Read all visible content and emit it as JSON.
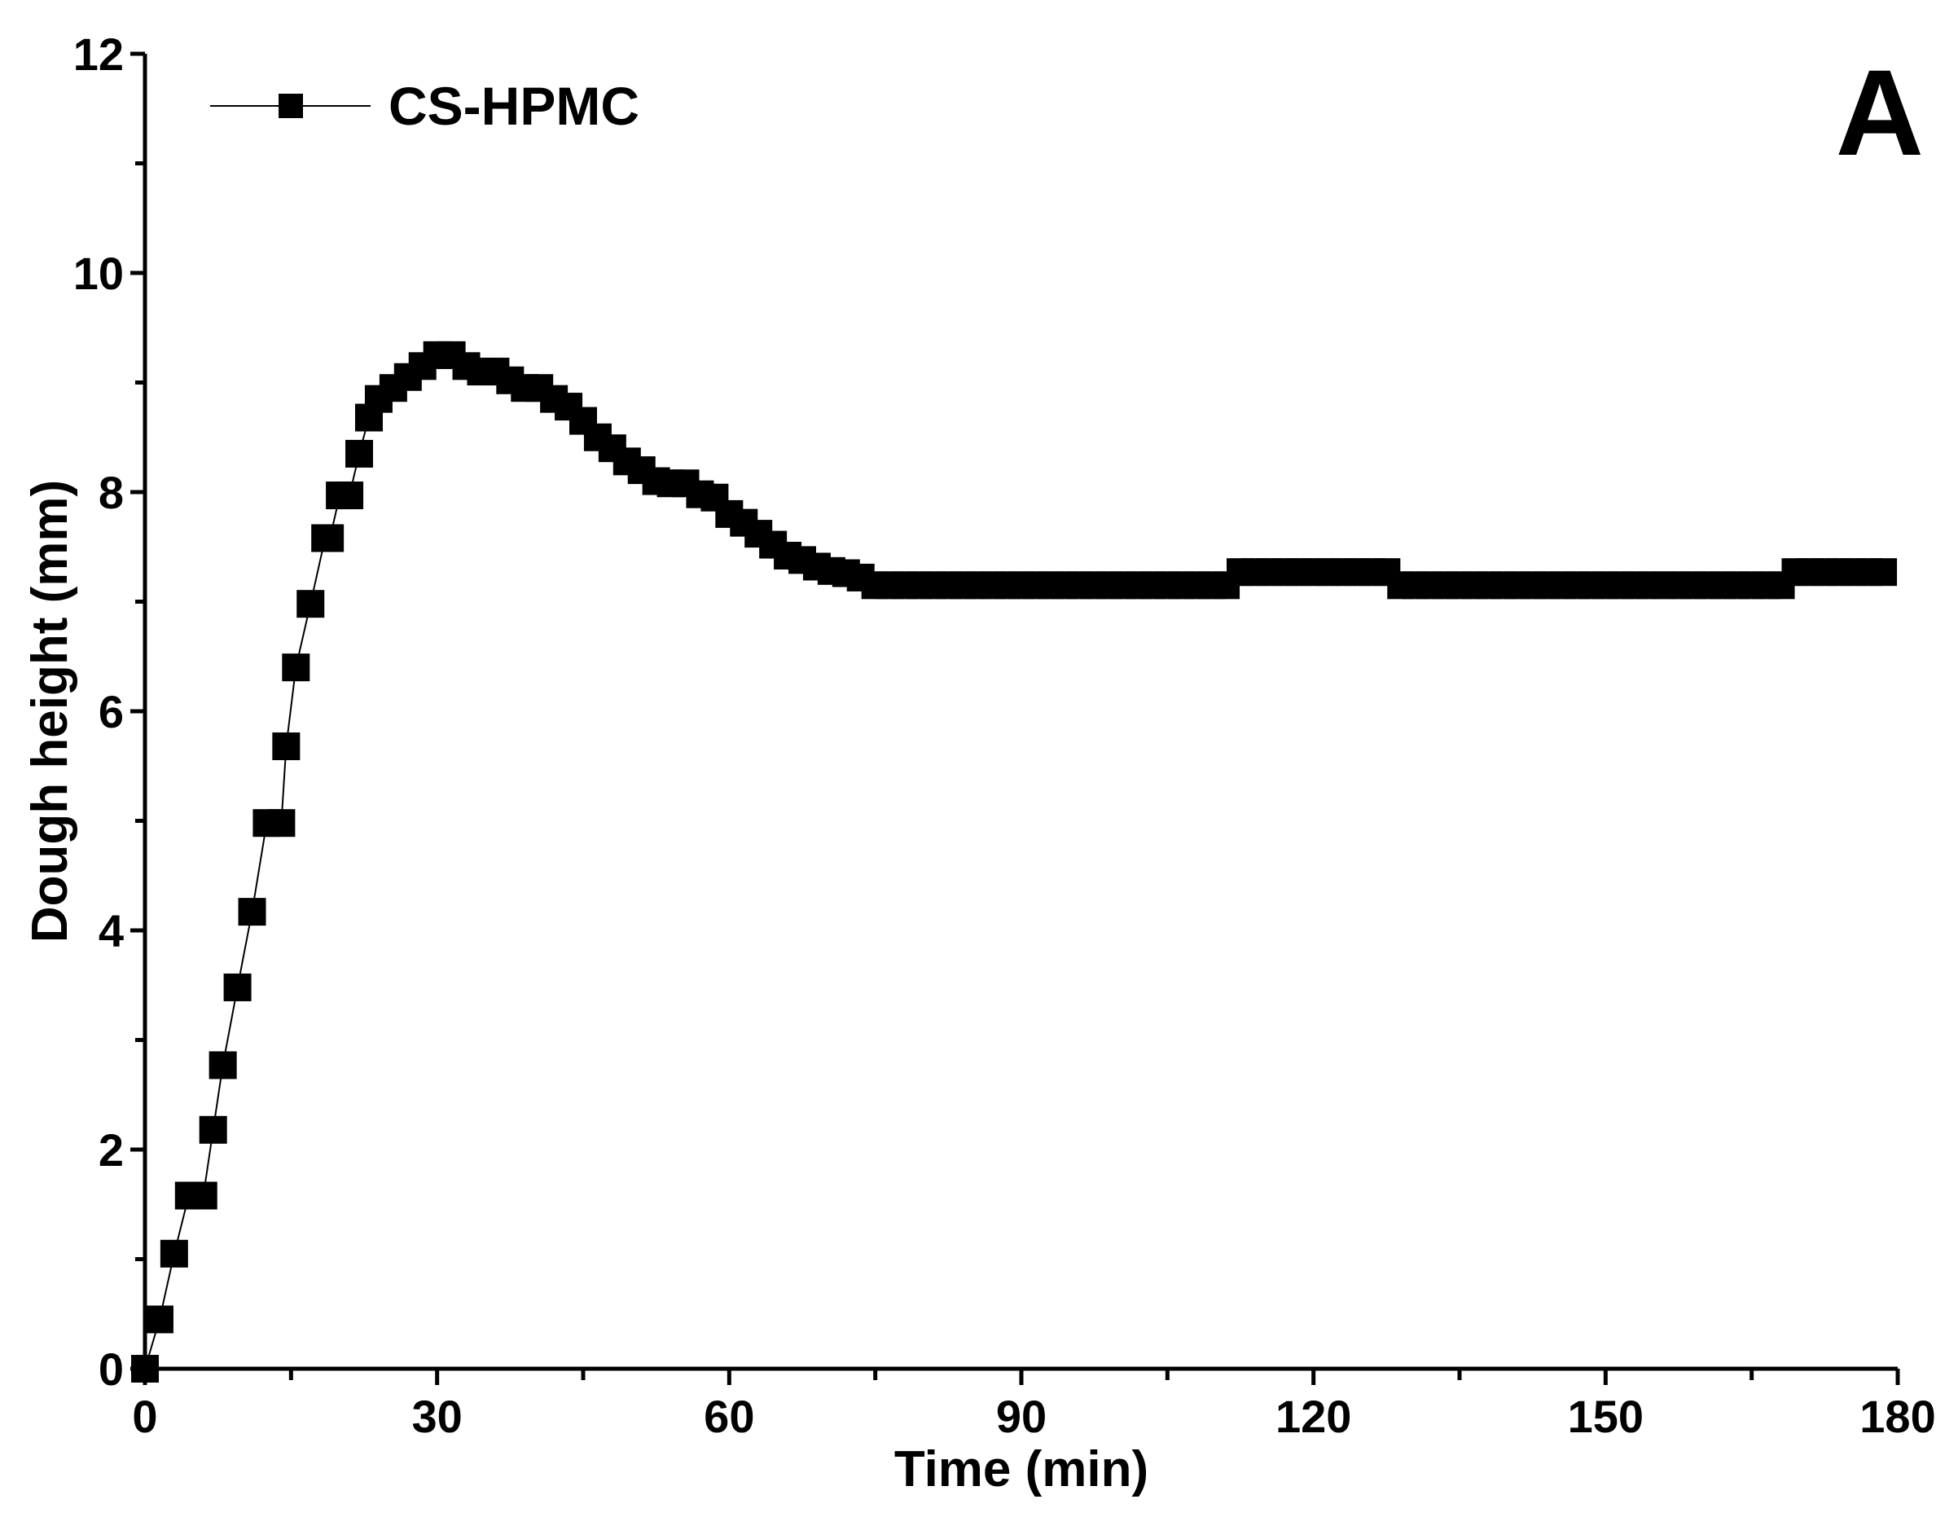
{
  "chart_data": {
    "type": "scatter",
    "title": "",
    "xlabel": "Time (min)",
    "ylabel": "Dough height (mm)",
    "xlim": [
      0,
      180
    ],
    "ylim": [
      0,
      12
    ],
    "xticks": [
      0,
      30,
      60,
      90,
      120,
      150,
      180
    ],
    "yticks": [
      0,
      2,
      4,
      6,
      8,
      10,
      12
    ],
    "grid": false,
    "legend_position": "top-left",
    "panel_label": "A",
    "series": [
      {
        "name": "CS-HPMC",
        "color": "#000000",
        "marker": "square",
        "line": true,
        "points": [
          [
            0,
            0
          ],
          [
            1.5,
            0.45
          ],
          [
            3,
            1.05
          ],
          [
            4.5,
            1.58
          ],
          [
            6,
            1.58
          ],
          [
            7,
            2.18
          ],
          [
            8,
            2.77
          ],
          [
            9.5,
            3.48
          ],
          [
            11,
            4.17
          ],
          [
            12.5,
            4.98
          ],
          [
            14,
            4.98
          ],
          [
            14.5,
            5.68
          ],
          [
            15.5,
            6.4
          ],
          [
            17,
            6.98
          ],
          [
            18.5,
            7.58
          ],
          [
            19,
            7.58
          ],
          [
            20,
            7.97
          ],
          [
            21,
            7.97
          ],
          [
            22,
            8.35
          ],
          [
            23,
            8.68
          ],
          [
            24,
            8.85
          ],
          [
            25.5,
            8.95
          ],
          [
            27,
            9.05
          ],
          [
            28.5,
            9.15
          ],
          [
            30,
            9.25
          ],
          [
            31.5,
            9.25
          ],
          [
            33,
            9.15
          ],
          [
            34.5,
            9.1
          ],
          [
            36,
            9.1
          ],
          [
            37.5,
            9.02
          ],
          [
            39,
            8.95
          ],
          [
            40.5,
            8.95
          ],
          [
            42,
            8.85
          ],
          [
            43.5,
            8.78
          ],
          [
            45,
            8.65
          ],
          [
            46.5,
            8.5
          ],
          [
            48,
            8.4
          ],
          [
            49.5,
            8.28
          ],
          [
            51,
            8.2
          ],
          [
            52.5,
            8.1
          ],
          [
            54,
            8.08
          ],
          [
            55.5,
            8.08
          ],
          [
            57,
            7.98
          ],
          [
            58.5,
            7.95
          ],
          [
            60,
            7.8
          ],
          [
            61.5,
            7.72
          ],
          [
            63,
            7.62
          ],
          [
            64.5,
            7.52
          ],
          [
            66,
            7.42
          ],
          [
            67.5,
            7.38
          ],
          [
            69,
            7.32
          ],
          [
            70.5,
            7.28
          ],
          [
            72,
            7.26
          ],
          [
            73.5,
            7.22
          ],
          [
            75,
            7.15
          ],
          [
            76.5,
            7.15
          ],
          [
            78,
            7.15
          ],
          [
            79.5,
            7.15
          ],
          [
            81,
            7.15
          ],
          [
            82.5,
            7.15
          ],
          [
            84,
            7.15
          ],
          [
            85.5,
            7.15
          ],
          [
            87,
            7.15
          ],
          [
            88.5,
            7.15
          ],
          [
            90,
            7.15
          ],
          [
            91.5,
            7.15
          ],
          [
            93,
            7.15
          ],
          [
            94.5,
            7.15
          ],
          [
            96,
            7.15
          ],
          [
            97.5,
            7.15
          ],
          [
            99,
            7.15
          ],
          [
            100.5,
            7.15
          ],
          [
            102,
            7.15
          ],
          [
            103.5,
            7.15
          ],
          [
            105,
            7.15
          ],
          [
            106.5,
            7.15
          ],
          [
            108,
            7.15
          ],
          [
            109.5,
            7.15
          ],
          [
            111,
            7.15
          ],
          [
            112.5,
            7.27
          ],
          [
            114,
            7.27
          ],
          [
            115.5,
            7.27
          ],
          [
            117,
            7.27
          ],
          [
            118.5,
            7.27
          ],
          [
            120,
            7.27
          ],
          [
            121.5,
            7.27
          ],
          [
            123,
            7.27
          ],
          [
            124.5,
            7.27
          ],
          [
            126,
            7.27
          ],
          [
            127.5,
            7.27
          ],
          [
            129,
            7.15
          ],
          [
            130.5,
            7.15
          ],
          [
            132,
            7.15
          ],
          [
            133.5,
            7.15
          ],
          [
            135,
            7.15
          ],
          [
            136.5,
            7.15
          ],
          [
            138,
            7.15
          ],
          [
            139.5,
            7.15
          ],
          [
            141,
            7.15
          ],
          [
            142.5,
            7.15
          ],
          [
            144,
            7.15
          ],
          [
            145.5,
            7.15
          ],
          [
            147,
            7.15
          ],
          [
            148.5,
            7.15
          ],
          [
            150,
            7.15
          ],
          [
            151.5,
            7.15
          ],
          [
            153,
            7.15
          ],
          [
            154.5,
            7.15
          ],
          [
            156,
            7.15
          ],
          [
            157.5,
            7.15
          ],
          [
            159,
            7.15
          ],
          [
            160.5,
            7.15
          ],
          [
            162,
            7.15
          ],
          [
            163.5,
            7.15
          ],
          [
            165,
            7.15
          ],
          [
            166.5,
            7.15
          ],
          [
            168,
            7.15
          ],
          [
            169.5,
            7.27
          ],
          [
            171,
            7.27
          ],
          [
            172.5,
            7.27
          ],
          [
            174,
            7.27
          ],
          [
            175.5,
            7.27
          ],
          [
            177,
            7.27
          ],
          [
            178.5,
            7.27
          ]
        ]
      }
    ]
  }
}
